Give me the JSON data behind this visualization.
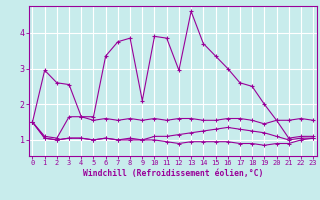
{
  "xlabel": "Windchill (Refroidissement éolien,°C)",
  "x_ticks": [
    0,
    1,
    2,
    3,
    4,
    5,
    6,
    7,
    8,
    9,
    10,
    11,
    12,
    13,
    14,
    15,
    16,
    17,
    18,
    19,
    20,
    21,
    22,
    23
  ],
  "y_ticks": [
    1,
    2,
    3,
    4
  ],
  "xlim": [
    -0.3,
    23.3
  ],
  "ylim": [
    0.55,
    4.75
  ],
  "bg_color": "#c8ecec",
  "grid_color": "#ffffff",
  "line_color": "#990099",
  "line1_x": [
    0,
    1,
    2,
    3,
    4,
    5,
    6,
    7,
    8,
    9,
    10,
    11,
    12,
    13,
    14,
    15,
    16,
    17,
    18,
    19,
    20,
    21,
    22,
    23
  ],
  "line1_y": [
    1.5,
    2.95,
    2.6,
    2.55,
    1.65,
    1.65,
    3.35,
    3.75,
    3.85,
    2.1,
    3.9,
    3.85,
    2.95,
    4.6,
    3.7,
    3.35,
    3.0,
    2.6,
    2.5,
    2.0,
    1.55,
    1.55,
    1.6,
    1.55
  ],
  "line2_x": [
    0,
    1,
    2,
    3,
    4,
    5,
    6,
    7,
    8,
    9,
    10,
    11,
    12,
    13,
    14,
    15,
    16,
    17,
    18,
    19,
    20,
    21,
    22,
    23
  ],
  "line2_y": [
    1.5,
    1.1,
    1.05,
    1.65,
    1.65,
    1.55,
    1.6,
    1.55,
    1.6,
    1.55,
    1.6,
    1.55,
    1.6,
    1.6,
    1.55,
    1.55,
    1.6,
    1.6,
    1.55,
    1.45,
    1.55,
    1.05,
    1.1,
    1.1
  ],
  "line3_x": [
    0,
    1,
    2,
    3,
    4,
    5,
    6,
    7,
    8,
    9,
    10,
    11,
    12,
    13,
    14,
    15,
    16,
    17,
    18,
    19,
    20,
    21,
    22,
    23
  ],
  "line3_y": [
    1.5,
    1.05,
    1.0,
    1.05,
    1.05,
    1.0,
    1.05,
    1.0,
    1.05,
    1.0,
    1.1,
    1.1,
    1.15,
    1.2,
    1.25,
    1.3,
    1.35,
    1.3,
    1.25,
    1.2,
    1.1,
    1.0,
    1.05,
    1.05
  ],
  "line4_x": [
    0,
    1,
    2,
    3,
    4,
    5,
    6,
    7,
    8,
    9,
    10,
    11,
    12,
    13,
    14,
    15,
    16,
    17,
    18,
    19,
    20,
    21,
    22,
    23
  ],
  "line4_y": [
    1.5,
    1.05,
    1.0,
    1.05,
    1.05,
    1.0,
    1.05,
    1.0,
    1.0,
    1.0,
    1.0,
    0.95,
    0.9,
    0.95,
    0.95,
    0.95,
    0.95,
    0.9,
    0.9,
    0.85,
    0.9,
    0.9,
    1.0,
    1.05
  ],
  "tick_fontsize": 5.0,
  "xlabel_fontsize": 5.8,
  "ytick_fontsize": 6.0
}
